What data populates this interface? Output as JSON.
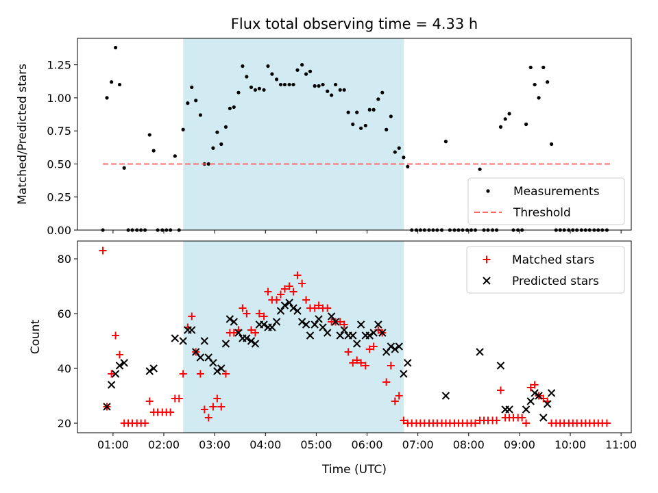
{
  "figure": {
    "title": "Flux total observing time = 4.33 h",
    "xlabel": "Time (UTC)"
  },
  "colors": {
    "span": "#add8e6",
    "threshold": "#ff6b6b",
    "measurement": "#000000",
    "matched": "#ff0000",
    "predicted": "#000000"
  },
  "chart_data": [
    {
      "type": "scatter",
      "panel": "top",
      "title": "Flux total observing time = 4.33 h",
      "xlabel": "",
      "ylabel": "Matched/Predicted stars",
      "xlim": [
        0.3,
        11.2
      ],
      "ylim": [
        0,
        1.45
      ],
      "xticks": [
        1,
        2,
        3,
        4,
        5,
        6,
        7,
        8,
        9,
        10,
        11
      ],
      "xticklabels": [
        "01:00",
        "02:00",
        "03:00",
        "04:00",
        "05:00",
        "06:00",
        "07:00",
        "08:00",
        "09:00",
        "10:00",
        "11:00"
      ],
      "yticks": [
        0,
        0.25,
        0.5,
        0.75,
        1.0,
        1.25
      ],
      "yticklabels": [
        "0.00",
        "0.25",
        "0.50",
        "0.75",
        "1.00",
        "1.25"
      ],
      "shaded_span": [
        2.38,
        6.72
      ],
      "legend_position": "lower right",
      "series": [
        {
          "name": "Measurements",
          "marker": "dot",
          "x": [
            0.8,
            0.88,
            0.97,
            1.05,
            1.13,
            1.22,
            1.3,
            1.38,
            1.47,
            1.55,
            1.63,
            1.72,
            1.8,
            1.88,
            1.97,
            2.05,
            2.13,
            2.22,
            2.3,
            2.38,
            2.47,
            2.55,
            2.63,
            2.72,
            2.8,
            2.88,
            2.97,
            3.05,
            3.13,
            3.22,
            3.3,
            3.38,
            3.47,
            3.55,
            3.63,
            3.72,
            3.8,
            3.88,
            3.97,
            4.05,
            4.13,
            4.22,
            4.3,
            4.38,
            4.47,
            4.55,
            4.63,
            4.72,
            4.8,
            4.88,
            4.97,
            5.05,
            5.13,
            5.22,
            5.3,
            5.38,
            5.47,
            5.55,
            5.63,
            5.72,
            5.8,
            5.88,
            5.97,
            6.05,
            6.13,
            6.22,
            6.3,
            6.38,
            6.47,
            6.55,
            6.63,
            6.72,
            6.8,
            6.88,
            6.97,
            7.05,
            7.13,
            7.22,
            7.3,
            7.38,
            7.47,
            7.55,
            7.63,
            7.72,
            7.8,
            7.88,
            7.97,
            8.05,
            8.13,
            8.22,
            8.3,
            8.38,
            8.47,
            8.55,
            8.63,
            8.72,
            8.8,
            8.88,
            8.97,
            9.05,
            9.13,
            9.22,
            9.3,
            9.38,
            9.47,
            9.55,
            9.63,
            9.72,
            9.8,
            9.88,
            9.97,
            10.05,
            10.13,
            10.22,
            10.3,
            10.38,
            10.47,
            10.55,
            10.63,
            10.72
          ],
          "y": [
            0.0,
            1.0,
            1.12,
            1.38,
            1.1,
            0.47,
            0.0,
            0.0,
            0.0,
            0.0,
            0.0,
            0.72,
            0.6,
            0.0,
            0.0,
            0.0,
            0.0,
            0.56,
            0.0,
            0.76,
            0.96,
            1.08,
            0.98,
            0.87,
            0.5,
            0.5,
            0.62,
            0.74,
            0.65,
            0.78,
            0.92,
            0.93,
            1.04,
            1.24,
            1.16,
            1.08,
            1.06,
            1.07,
            1.06,
            1.24,
            1.18,
            1.14,
            1.1,
            1.1,
            1.1,
            1.1,
            1.21,
            1.25,
            1.18,
            1.2,
            1.09,
            1.09,
            1.1,
            1.05,
            1.02,
            1.1,
            1.06,
            1.06,
            0.89,
            0.8,
            0.89,
            0.77,
            0.79,
            0.91,
            0.91,
            0.99,
            1.04,
            0.76,
            0.86,
            0.59,
            0.62,
            0.55,
            0.48,
            0.0,
            0.0,
            0.0,
            0.0,
            0.0,
            0.0,
            0.0,
            0.0,
            0.67,
            0.0,
            0.0,
            0.0,
            0.0,
            0.0,
            0.0,
            0.0,
            0.46,
            0.0,
            0.0,
            0.0,
            0.0,
            0.78,
            0.84,
            0.88,
            0.0,
            0.0,
            0.0,
            0.8,
            1.23,
            1.1,
            1.0,
            1.23,
            1.12,
            0.65,
            0.0,
            0.0,
            0.0,
            0.0,
            0.0,
            0.0,
            0.0,
            0.0,
            0.0,
            0.0,
            0.0,
            0.0,
            0.0
          ]
        },
        {
          "name": "Threshold",
          "marker": "dashed-line",
          "x": [
            0.8,
            10.8
          ],
          "y": [
            0.5,
            0.5
          ]
        }
      ]
    },
    {
      "type": "scatter",
      "panel": "bottom",
      "xlabel": "Time (UTC)",
      "ylabel": "Count",
      "xlim": [
        0.3,
        11.2
      ],
      "ylim": [
        16.5,
        86.5
      ],
      "xticks": [
        1,
        2,
        3,
        4,
        5,
        6,
        7,
        8,
        9,
        10,
        11
      ],
      "xticklabels": [
        "01:00",
        "02:00",
        "03:00",
        "04:00",
        "05:00",
        "06:00",
        "07:00",
        "08:00",
        "09:00",
        "10:00",
        "11:00"
      ],
      "yticks": [
        20,
        40,
        60,
        80
      ],
      "yticklabels": [
        "20",
        "40",
        "60",
        "80"
      ],
      "shaded_span": [
        2.38,
        6.72
      ],
      "legend_position": "upper right",
      "series": [
        {
          "name": "Matched stars",
          "marker": "plus",
          "x": [
            0.8,
            0.88,
            0.97,
            1.05,
            1.13,
            1.22,
            1.3,
            1.38,
            1.47,
            1.55,
            1.63,
            1.72,
            1.8,
            1.88,
            1.97,
            2.05,
            2.13,
            2.22,
            2.3,
            2.38,
            2.47,
            2.55,
            2.63,
            2.72,
            2.8,
            2.88,
            2.97,
            3.05,
            3.13,
            3.22,
            3.3,
            3.38,
            3.47,
            3.55,
            3.63,
            3.72,
            3.8,
            3.88,
            3.97,
            4.05,
            4.13,
            4.22,
            4.3,
            4.38,
            4.47,
            4.55,
            4.63,
            4.72,
            4.8,
            4.88,
            4.97,
            5.05,
            5.13,
            5.22,
            5.3,
            5.38,
            5.47,
            5.55,
            5.63,
            5.72,
            5.8,
            5.88,
            5.97,
            6.05,
            6.13,
            6.22,
            6.3,
            6.38,
            6.47,
            6.55,
            6.63,
            6.72,
            6.8,
            6.88,
            6.97,
            7.05,
            7.13,
            7.22,
            7.3,
            7.38,
            7.47,
            7.55,
            7.63,
            7.72,
            7.8,
            7.88,
            7.97,
            8.05,
            8.13,
            8.22,
            8.3,
            8.38,
            8.47,
            8.55,
            8.63,
            8.72,
            8.8,
            8.88,
            8.97,
            9.05,
            9.13,
            9.22,
            9.3,
            9.38,
            9.47,
            9.55,
            9.63,
            9.72,
            9.8,
            9.88,
            9.97,
            10.05,
            10.13,
            10.22,
            10.3,
            10.38,
            10.47,
            10.55,
            10.63,
            10.72
          ],
          "y": [
            83,
            26,
            38,
            52,
            45,
            20,
            20,
            20,
            20,
            20,
            20,
            28,
            24,
            24,
            24,
            24,
            24,
            29,
            29,
            38,
            55,
            59,
            46,
            38,
            25,
            22,
            26,
            29,
            26,
            38,
            53,
            53,
            54,
            62,
            60,
            54,
            53,
            60,
            59,
            68,
            65,
            65,
            67,
            69,
            70,
            68,
            74,
            71,
            65,
            62,
            62,
            63,
            62,
            62,
            57,
            57,
            57,
            56,
            46,
            42,
            43,
            42,
            41,
            47,
            48,
            54,
            53,
            35,
            41,
            28,
            30,
            21,
            20,
            20,
            20,
            20,
            20,
            20,
            20,
            20,
            20,
            20,
            20,
            20,
            20,
            20,
            20,
            20,
            20,
            21,
            21,
            21,
            21,
            21,
            32,
            22,
            22,
            22,
            22,
            22,
            20,
            33,
            34,
            30,
            29,
            28,
            20,
            20,
            20,
            20,
            20,
            20,
            20,
            20,
            20,
            20,
            20,
            20,
            20,
            20
          ]
        },
        {
          "name": "Predicted stars",
          "marker": "x",
          "x": [
            0.88,
            0.97,
            1.05,
            1.13,
            1.22,
            1.72,
            1.8,
            2.22,
            2.38,
            2.47,
            2.55,
            2.63,
            2.72,
            2.8,
            2.88,
            2.97,
            3.05,
            3.13,
            3.22,
            3.3,
            3.38,
            3.47,
            3.55,
            3.63,
            3.72,
            3.8,
            3.88,
            3.97,
            4.05,
            4.13,
            4.22,
            4.3,
            4.38,
            4.47,
            4.55,
            4.63,
            4.72,
            4.8,
            4.88,
            4.97,
            5.05,
            5.13,
            5.22,
            5.3,
            5.38,
            5.47,
            5.55,
            5.63,
            5.72,
            5.8,
            5.88,
            5.97,
            6.05,
            6.13,
            6.22,
            6.3,
            6.38,
            6.47,
            6.55,
            6.63,
            6.72,
            6.8,
            7.55,
            8.22,
            8.63,
            8.72,
            8.8,
            9.13,
            9.22,
            9.3,
            9.38,
            9.47,
            9.55,
            9.63
          ],
          "y": [
            26,
            34,
            38,
            41,
            42,
            39,
            40,
            51,
            50,
            54,
            54,
            46,
            44,
            50,
            44,
            42,
            39,
            40,
            49,
            58,
            57,
            53,
            51,
            51,
            50,
            49,
            56,
            56,
            55,
            55,
            57,
            61,
            63,
            64,
            62,
            61,
            57,
            56,
            52,
            56,
            58,
            55,
            53,
            59,
            57,
            52,
            54,
            52,
            52,
            49,
            56,
            52,
            52,
            53,
            56,
            53,
            46,
            48,
            47,
            48,
            38,
            42,
            30,
            46,
            41,
            25,
            25,
            25,
            28,
            31,
            30,
            22,
            27,
            31
          ]
        }
      ]
    }
  ]
}
